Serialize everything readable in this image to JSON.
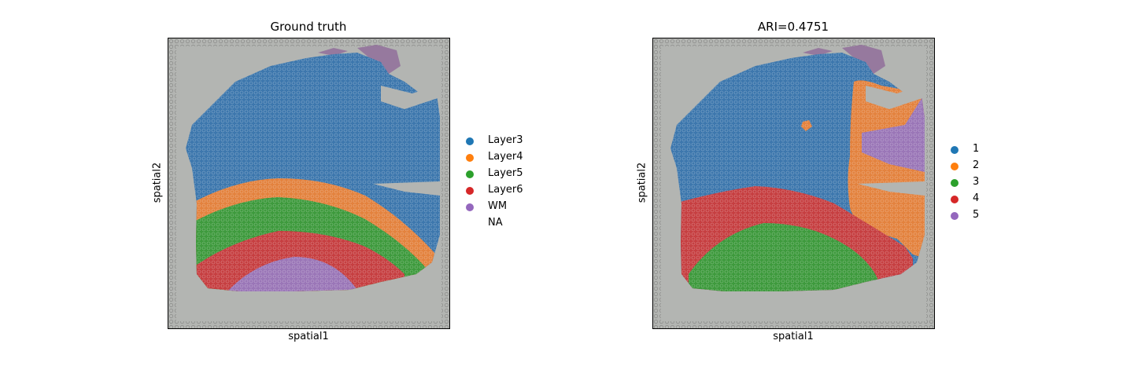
{
  "chart_data": [
    {
      "type": "scatter",
      "title": "Ground truth",
      "xlabel": "spatial1",
      "ylabel": "spatial2",
      "legend_placement": "right",
      "series": [
        {
          "name": "Layer3",
          "color": "#1f77b4"
        },
        {
          "name": "Layer4",
          "color": "#ff7f0e"
        },
        {
          "name": "Layer5",
          "color": "#2ca02c"
        },
        {
          "name": "Layer6",
          "color": "#d62728"
        },
        {
          "name": "WM",
          "color": "#9467bd"
        },
        {
          "name": "NA",
          "color": "#ffffff"
        }
      ]
    },
    {
      "type": "scatter",
      "title": "ARI=0.4751",
      "xlabel": "spatial1",
      "ylabel": "spatial2",
      "legend_placement": "right",
      "series": [
        {
          "name": "1",
          "color": "#1f77b4"
        },
        {
          "name": "2",
          "color": "#ff7f0e"
        },
        {
          "name": "3",
          "color": "#2ca02c"
        },
        {
          "name": "4",
          "color": "#d62728"
        },
        {
          "name": "5",
          "color": "#9467bd"
        }
      ]
    }
  ]
}
